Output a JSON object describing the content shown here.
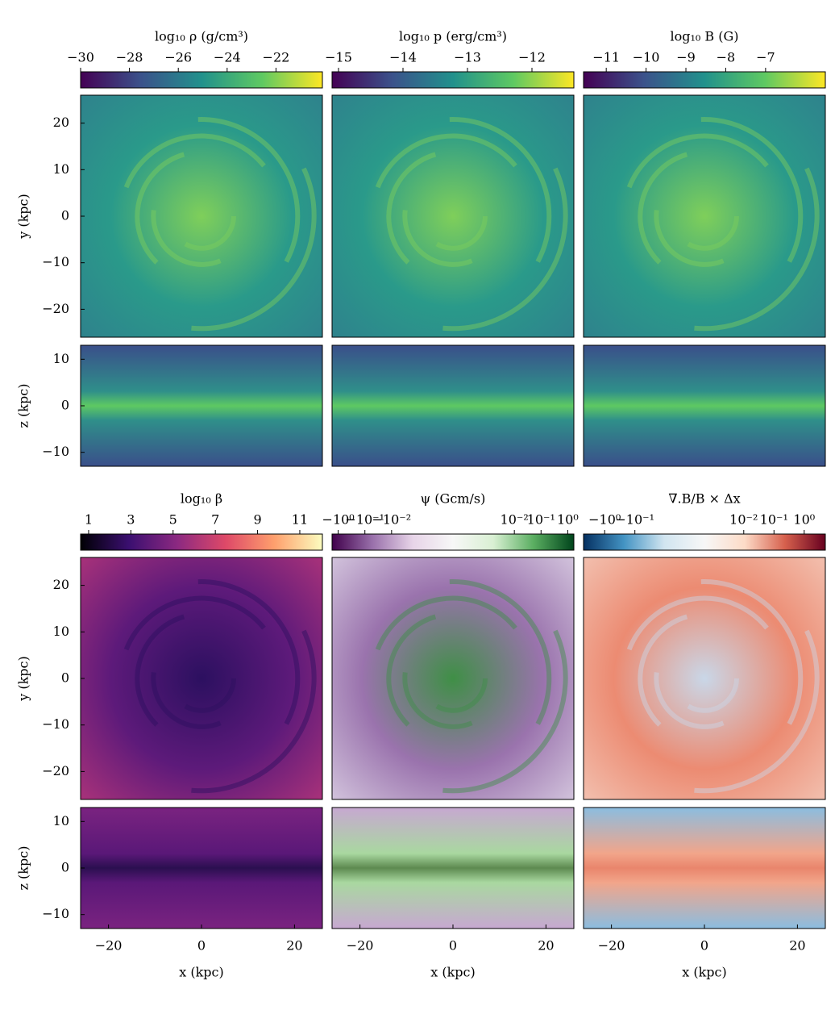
{
  "chart_data": [
    {
      "type": "heatmap",
      "colormap": "viridis",
      "colorbar_label": "log₁₀ ρ (g/cm³)",
      "clim": [
        -30,
        -20.1
      ],
      "cticks": [
        {
          "value": -30,
          "label": "−30"
        },
        {
          "value": -28,
          "label": "−28"
        },
        {
          "value": -26,
          "label": "−26"
        },
        {
          "value": -24,
          "label": "−24"
        },
        {
          "value": -22,
          "label": "−22"
        }
      ],
      "views": [
        {
          "ylabel": "y (kpc)",
          "ylim": [
            -26,
            26
          ],
          "yticks": [
            {
              "value": -20,
              "label": "−20"
            },
            {
              "value": -10,
              "label": "−10"
            },
            0,
            10,
            20
          ]
        },
        {
          "ylabel": "z (kpc)",
          "ylim": [
            -13,
            13
          ],
          "yticks": [
            {
              "value": -10,
              "label": "−10"
            },
            0,
            10
          ]
        }
      ]
    },
    {
      "type": "heatmap",
      "colormap": "viridis",
      "colorbar_label": "log₁₀ p (erg/cm³)",
      "clim": [
        -15.1,
        -11.35
      ],
      "cticks": [
        {
          "value": -15,
          "label": "−15"
        },
        {
          "value": -14,
          "label": "−14"
        },
        {
          "value": -13,
          "label": "−13"
        },
        {
          "value": -12,
          "label": "−12"
        }
      ],
      "views": [
        {
          "ylim": [
            -26,
            26
          ]
        },
        {
          "ylim": [
            -13,
            13
          ]
        }
      ]
    },
    {
      "type": "heatmap",
      "colormap": "viridis",
      "colorbar_label": "log₁₀ B (G)",
      "clim": [
        -11.57,
        -5.5
      ],
      "cticks": [
        {
          "value": -11,
          "label": "−11"
        },
        {
          "value": -10,
          "label": "−10"
        },
        {
          "value": -9,
          "label": "−9"
        },
        {
          "value": -8,
          "label": "−8"
        },
        {
          "value": -7,
          "label": "−7"
        }
      ],
      "views": [
        {
          "ylim": [
            -26,
            26
          ]
        },
        {
          "ylim": [
            -13,
            13
          ]
        }
      ]
    },
    {
      "type": "heatmap",
      "colormap": "magma",
      "colorbar_label": "log₁₀ β",
      "clim": [
        0.62,
        12.07
      ],
      "cticks": [
        1,
        3,
        5,
        7,
        9,
        11
      ],
      "views": [
        {
          "ylabel": "y (kpc)",
          "ylim": [
            -26,
            26
          ],
          "yticks": [
            {
              "value": -20,
              "label": "−20"
            },
            {
              "value": -10,
              "label": "−10"
            },
            0,
            10,
            20
          ]
        },
        {
          "ylabel": "z (kpc)",
          "ylim": [
            -13,
            13
          ],
          "yticks": [
            {
              "value": -10,
              "label": "−10"
            },
            0,
            10
          ]
        }
      ],
      "xlabel": "x (kpc)",
      "xlim": [
        -26,
        26
      ],
      "xticks": [
        {
          "value": -20,
          "label": "−20"
        },
        0,
        20
      ]
    },
    {
      "type": "heatmap",
      "colormap": "PRGn",
      "colorbar_label": "ψ (Gcm/s)",
      "scale": "symlog",
      "linthresh": 0.0005,
      "clim": [
        -1.7,
        1.7
      ],
      "cticks": [
        {
          "value": -1,
          "label": "−10⁰"
        },
        {
          "value": -0.1,
          "label": "−10⁻¹"
        },
        {
          "value": -0.01,
          "label": "−10⁻²"
        },
        {
          "value": 0.01,
          "label": "10⁻²"
        },
        {
          "value": 0.1,
          "label": "10⁻¹"
        },
        {
          "value": 1,
          "label": "10⁰"
        }
      ],
      "views": [
        {
          "ylim": [
            -26,
            26
          ]
        },
        {
          "ylim": [
            -13,
            13
          ]
        }
      ],
      "xlabel": "x (kpc)",
      "xlim": [
        -26,
        26
      ],
      "xticks": [
        {
          "value": -20,
          "label": "−20"
        },
        0,
        20
      ]
    },
    {
      "type": "heatmap",
      "colormap": "RdBu_r",
      "colorbar_label": "∇.B/B × Δx",
      "scale": "symlog",
      "linthresh": 0.005,
      "clim": [
        -5,
        5
      ],
      "cticks": [
        {
          "value": -1,
          "label": "−10⁰"
        },
        {
          "value": -0.1,
          "label": "−10⁻¹"
        },
        {
          "value": 0.01,
          "label": "10⁻²"
        },
        {
          "value": 0.1,
          "label": "10⁻¹"
        },
        {
          "value": 1,
          "label": "10⁰"
        }
      ],
      "views": [
        {
          "ylim": [
            -26,
            26
          ]
        },
        {
          "ylim": [
            -13,
            13
          ]
        }
      ],
      "xlabel": "x (kpc)",
      "xlim": [
        -26,
        26
      ],
      "xticks": [
        {
          "value": -20,
          "label": "−20"
        },
        0,
        20
      ]
    }
  ]
}
